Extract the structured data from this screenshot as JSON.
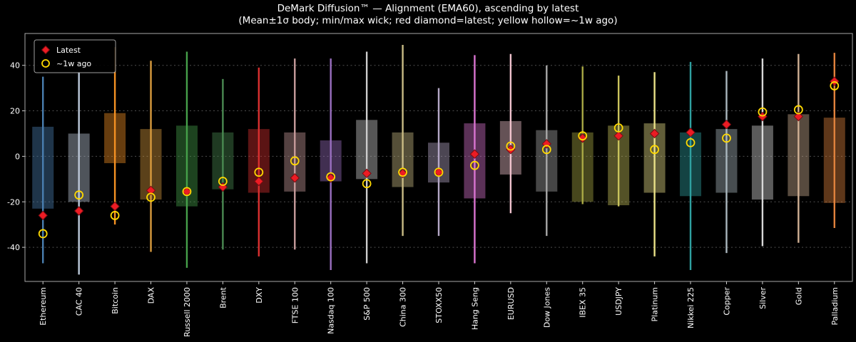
{
  "chart_data": {
    "type": "range-candlestick",
    "title": "DeMark Diffusion™ — Alignment (EMA60), ascending by latest",
    "subtitle": "(Mean±1σ body; min/max wick; red diamond=latest; yellow hollow=~1w ago)",
    "ylim": [
      -55,
      54
    ],
    "yticks": [
      40,
      20,
      0,
      -20,
      -40
    ],
    "grid": "horizontal dashed",
    "background": "#000000",
    "legend": {
      "position": "upper left",
      "items": [
        {
          "label": "Latest",
          "marker": "diamond",
          "color": "#ec1c24"
        },
        {
          "label": "~1w ago",
          "marker": "hollow-circle",
          "color": "#ffd900"
        }
      ]
    },
    "categories": [
      "Ethereum",
      "CAC 40",
      "Bitcoin",
      "DAX",
      "Russell 2000",
      "Brent",
      "DXY",
      "FTSE 100",
      "Nasdaq 100",
      "S&P 500",
      "China 300",
      "STOXX50",
      "Hang Seng",
      "EURUSD",
      "Dow Jones",
      "IBEX 35",
      "USDJPY",
      "Platinum",
      "Nikkei 225",
      "Copper",
      "Silver",
      "Gold",
      "Palladium"
    ],
    "series": [
      {
        "name": "Ethereum",
        "color": "#4a7fb0",
        "min": -47,
        "max": 35,
        "body_low": -23,
        "body_high": 13,
        "latest": -26,
        "week_ago": -34
      },
      {
        "name": "CAC 40",
        "color": "#bcc9da",
        "min": -52,
        "max": 37,
        "body_low": -20,
        "body_high": 10,
        "latest": -24,
        "week_ago": -17
      },
      {
        "name": "Bitcoin",
        "color": "#f59123",
        "min": -30,
        "max": 48,
        "body_low": -3,
        "body_high": 19,
        "latest": -22,
        "week_ago": -26
      },
      {
        "name": "DAX",
        "color": "#d99b3e",
        "min": -42,
        "max": 42,
        "body_low": -19,
        "body_high": 12,
        "latest": -15,
        "week_ago": -18
      },
      {
        "name": "Russell 2000",
        "color": "#46a04a",
        "min": -49,
        "max": 46,
        "body_low": -22,
        "body_high": 13.5,
        "latest": -15.5,
        "week_ago": -15.5
      },
      {
        "name": "Brent",
        "color": "#4a8a52",
        "min": -41,
        "max": 34,
        "body_low": -14.5,
        "body_high": 10.5,
        "latest": -13.5,
        "week_ago": -11
      },
      {
        "name": "DXY",
        "color": "#d93030",
        "min": -44,
        "max": 39,
        "body_low": -16,
        "body_high": 12,
        "latest": -11,
        "week_ago": -7
      },
      {
        "name": "FTSE 100",
        "color": "#c79c9c",
        "min": -41,
        "max": 43,
        "body_low": -15.5,
        "body_high": 10.5,
        "latest": -9.5,
        "week_ago": -2
      },
      {
        "name": "Nasdaq 100",
        "color": "#9a6fc0",
        "min": -50,
        "max": 43,
        "body_low": -11,
        "body_high": 7,
        "latest": -9.5,
        "week_ago": -9
      },
      {
        "name": "S&P 500",
        "color": "#cccccc",
        "min": -47,
        "max": 46,
        "body_low": -10,
        "body_high": 16,
        "latest": -7.5,
        "week_ago": -12
      },
      {
        "name": "China 300",
        "color": "#cabc85",
        "min": -35,
        "max": 49,
        "body_low": -13.5,
        "body_high": 10.5,
        "latest": -7.5,
        "week_ago": -7
      },
      {
        "name": "STOXX50",
        "color": "#b5a8c6",
        "min": -35,
        "max": 30,
        "body_low": -11.5,
        "body_high": 6,
        "latest": -7,
        "week_ago": -7
      },
      {
        "name": "Hang Seng",
        "color": "#da74d0",
        "min": -47,
        "max": 44.5,
        "body_low": -18.5,
        "body_high": 14.5,
        "latest": 1,
        "week_ago": -4
      },
      {
        "name": "EURUSD",
        "color": "#f1c3ce",
        "min": -25,
        "max": 45,
        "body_low": -8,
        "body_high": 15.5,
        "latest": 3,
        "week_ago": 4.5
      },
      {
        "name": "Dow Jones",
        "color": "#a8a8a8",
        "min": -35,
        "max": 40,
        "body_low": -15.5,
        "body_high": 11.5,
        "latest": 5.5,
        "week_ago": 3
      },
      {
        "name": "IBEX 35",
        "color": "#a9a945",
        "min": -21,
        "max": 39.5,
        "body_low": -20,
        "body_high": 10.5,
        "latest": 8,
        "week_ago": 9
      },
      {
        "name": "USDJPY",
        "color": "#c9c35c",
        "min": -22,
        "max": 35.5,
        "body_low": -21.5,
        "body_high": 13.5,
        "latest": 9,
        "week_ago": 12.5
      },
      {
        "name": "Platinum",
        "color": "#e9e187",
        "min": -44,
        "max": 37,
        "body_low": -16,
        "body_high": 14.5,
        "latest": 10,
        "week_ago": 3
      },
      {
        "name": "Nikkei 225",
        "color": "#2fa0a0",
        "min": -50,
        "max": 41.5,
        "body_low": -17.5,
        "body_high": 10.5,
        "latest": 10.5,
        "week_ago": 6
      },
      {
        "name": "Copper",
        "color": "#aab7be",
        "min": -42.5,
        "max": 37.5,
        "body_low": -16,
        "body_high": 12,
        "latest": 14,
        "week_ago": 8
      },
      {
        "name": "Silver",
        "color": "#d8d8d8",
        "min": -39.5,
        "max": 43,
        "body_low": -19,
        "body_high": 13.5,
        "latest": 17.5,
        "week_ago": 19.5
      },
      {
        "name": "Gold",
        "color": "#d0b094",
        "min": -38,
        "max": 45,
        "body_low": -17.5,
        "body_high": 18.5,
        "latest": 17.5,
        "week_ago": 20.5
      },
      {
        "name": "Palladium",
        "color": "#e1823d",
        "min": -31.5,
        "max": 45.5,
        "body_low": -20.5,
        "body_high": 17,
        "latest": 33,
        "week_ago": 31
      }
    ]
  }
}
